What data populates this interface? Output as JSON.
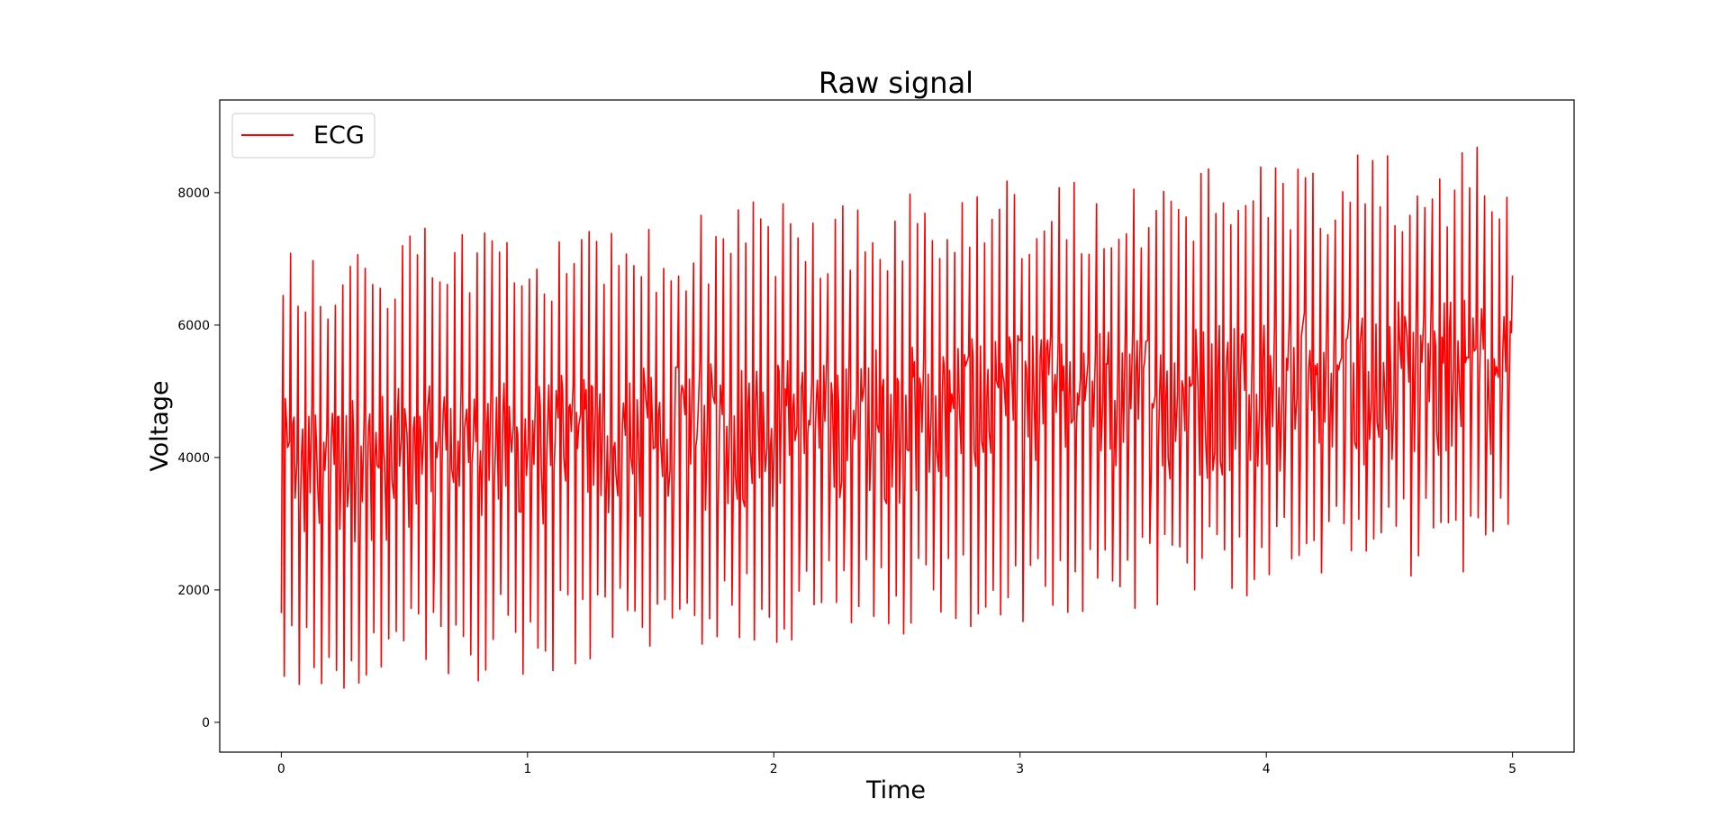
{
  "chart_data": {
    "type": "line",
    "title": "Raw signal",
    "xlabel": "Time",
    "ylabel": "Voltage",
    "xlim": [
      -0.25,
      5.25
    ],
    "ylim": [
      -450,
      9400
    ],
    "x_ticks": [
      0,
      1,
      2,
      3,
      4,
      5
    ],
    "x_tick_labels": [
      "0",
      "1",
      "2",
      "3",
      "4",
      "5"
    ],
    "y_ticks": [
      0,
      2000,
      4000,
      6000,
      8000
    ],
    "y_tick_labels": [
      "0",
      "2000",
      "4000",
      "6000",
      "8000"
    ],
    "grid": false,
    "legend_position": "top-left",
    "series": [
      {
        "name": "ECG",
        "color": "#ff0000",
        "duration": 5.0,
        "approx_cycles": 165,
        "start_peak_max": 7300,
        "end_peak_max": 8800,
        "start_trough_min": 300,
        "end_trough_min": 2300,
        "start_mid_band": [
          2600,
          4900
        ],
        "end_mid_band": [
          4000,
          6500
        ]
      }
    ]
  }
}
